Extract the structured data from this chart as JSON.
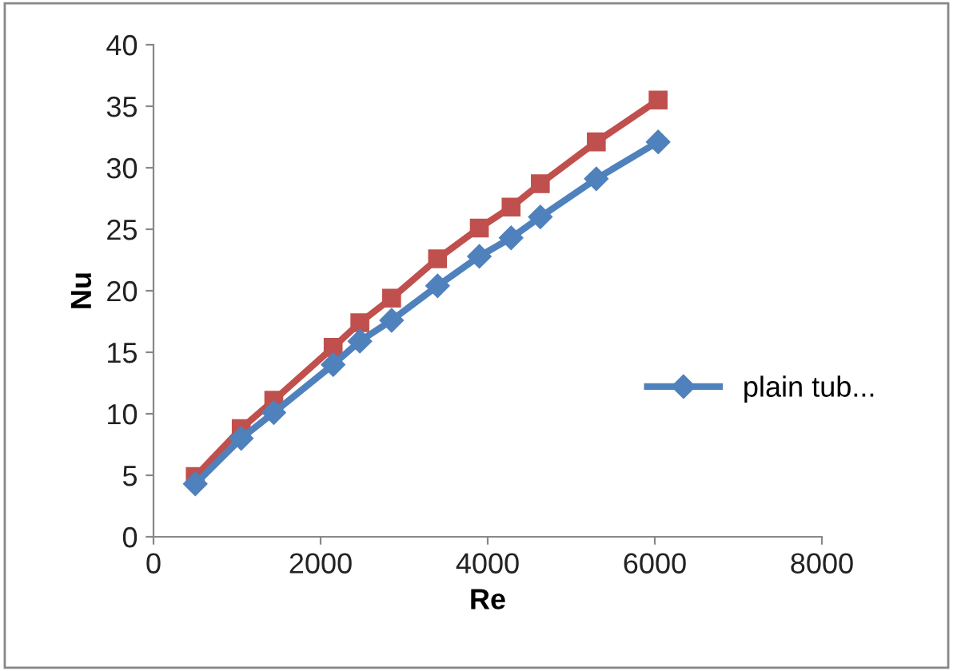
{
  "chart_data": {
    "type": "line",
    "xlabel": "Re",
    "ylabel": "Nu",
    "xlim": [
      0,
      8000
    ],
    "xticks": [
      0,
      2000,
      4000,
      6000,
      8000
    ],
    "ylim": [
      0,
      40
    ],
    "yticks": [
      0,
      5,
      10,
      15,
      20,
      25,
      30,
      35,
      40
    ],
    "grid": false,
    "legend": "right",
    "series": [
      {
        "name": "plain tub...",
        "color": "#4f81bd",
        "marker": "diamond",
        "x": [
          500,
          1050,
          1440,
          2150,
          2470,
          2850,
          3400,
          3900,
          4280,
          4630,
          5300,
          6040
        ],
        "values": [
          4.3,
          8.0,
          10.1,
          14.0,
          15.9,
          17.6,
          20.4,
          22.8,
          24.3,
          26.0,
          29.1,
          32.1
        ]
      },
      {
        "color": "#c0504d",
        "marker": "square",
        "x": [
          500,
          1050,
          1440,
          2150,
          2470,
          2850,
          3400,
          3900,
          4280,
          4630,
          5300,
          6040
        ],
        "values": [
          4.9,
          8.8,
          11.1,
          15.4,
          17.4,
          19.4,
          22.6,
          25.1,
          26.8,
          28.7,
          32.1,
          35.5
        ]
      }
    ]
  }
}
